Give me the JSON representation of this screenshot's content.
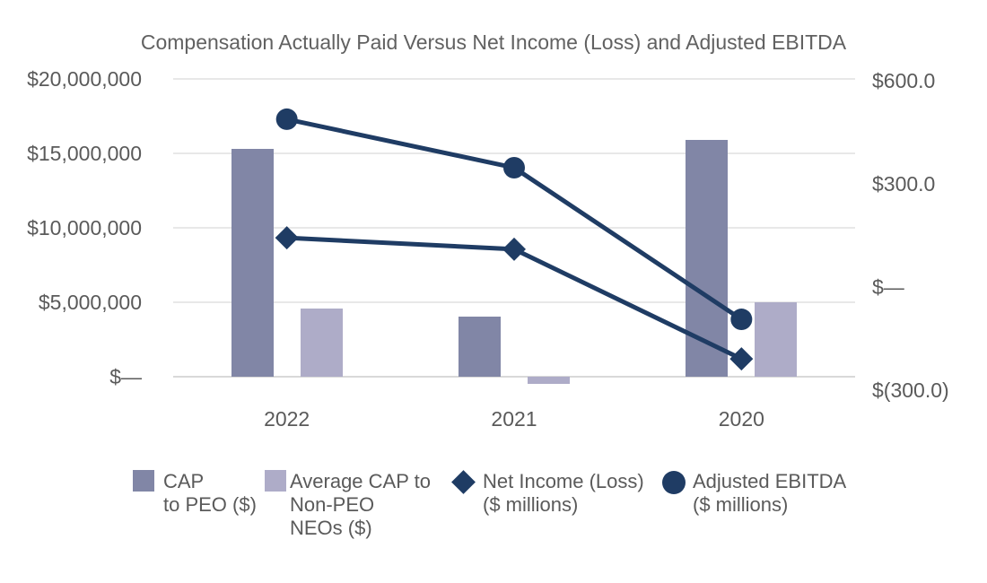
{
  "colors": {
    "bar_dark": "#8186a6",
    "bar_light": "#aeacc8",
    "line_navy": "#1f3c64",
    "gridline": "#e8e8e8",
    "zero_line": "#d9d9d9",
    "text_gray": "#5a5a5a",
    "title_gray": "#616161"
  },
  "chart_data": {
    "type": "combo-bar-line",
    "title": "Compensation Actually Paid Versus Net Income (Loss) and Adjusted EBITDA",
    "categories": [
      "2022",
      "2021",
      "2020"
    ],
    "bar_series": [
      {
        "name": "CAP to PEO ($)",
        "axis": "left",
        "color": "#8186a6",
        "values": [
          15300000,
          4050000,
          15900000
        ]
      },
      {
        "name": "Average CAP to Non-PEO NEOs ($)",
        "axis": "left",
        "color": "#aeacc8",
        "values": [
          4600000,
          -480000,
          5000000
        ]
      }
    ],
    "line_series": [
      {
        "name": "Net Income (Loss) ($ millions)",
        "axis": "right",
        "color": "#1f3c64",
        "marker": "diamond",
        "values": [
          143,
          110,
          -209
        ]
      },
      {
        "name": "Adjusted EBITDA ($ millions)",
        "axis": "right",
        "color": "#1f3c64",
        "marker": "circle",
        "values": [
          488,
          347,
          -94
        ]
      }
    ],
    "left_axis": {
      "range": [
        0,
        20000000
      ],
      "ticks": [
        {
          "label": "$20,000,000",
          "value": 20000000
        },
        {
          "label": "$15,000,000",
          "value": 15000000
        },
        {
          "label": "$10,000,000",
          "value": 10000000
        },
        {
          "label": "$5,000,000",
          "value": 5000000
        },
        {
          "label": "$—",
          "value": 0
        }
      ]
    },
    "right_axis": {
      "range": [
        -300,
        600
      ],
      "ticks": [
        {
          "label": "$600.0",
          "value": 600
        },
        {
          "label": "$300.0",
          "value": 300
        },
        {
          "label": "$—",
          "value": 0
        },
        {
          "label": "$(300.0)",
          "value": -300
        }
      ]
    },
    "grid": true,
    "legend_position": "bottom",
    "legend": [
      {
        "marker": "square-dark",
        "lines": [
          "CAP",
          "to PEO ($)"
        ]
      },
      {
        "marker": "square-light",
        "lines": [
          "Average CAP to",
          "Non-PEO",
          "NEOs ($)"
        ]
      },
      {
        "marker": "diamond",
        "lines": [
          "Net Income (Loss)",
          "($ millions)"
        ]
      },
      {
        "marker": "circle",
        "lines": [
          "Adjusted EBITDA",
          "($ millions)"
        ]
      }
    ]
  }
}
